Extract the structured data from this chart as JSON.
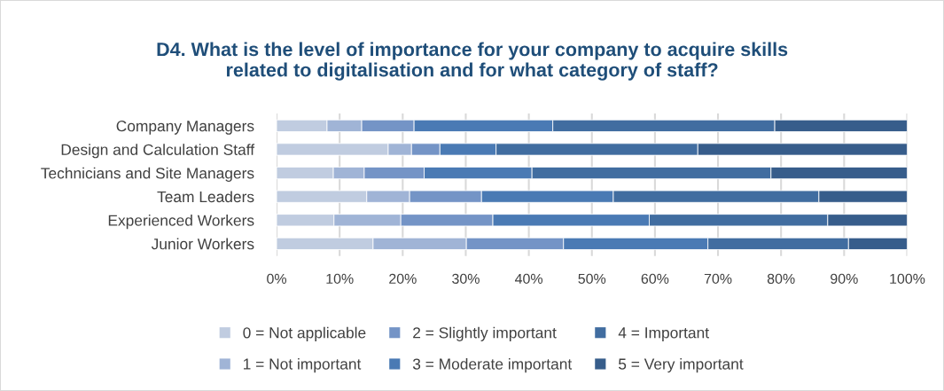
{
  "chart_data": {
    "type": "bar",
    "orientation": "horizontal",
    "stacked": true,
    "title": "D4. What is the level of importance for your company to acquire skills\nrelated to digitalisation and for what category of staff?",
    "categories": [
      "Company Managers",
      "Design and Calculation Staff",
      "Technicians and Site Managers",
      "Team Leaders",
      "Experienced Workers",
      "Junior Workers"
    ],
    "series": [
      {
        "name": "0 = Not applicable",
        "color": "#c0cce0",
        "values": [
          8,
          17.7,
          9,
          14.3,
          9.1,
          15.3
        ]
      },
      {
        "name": "1 = Not important",
        "color": "#a0b4d6",
        "values": [
          5.5,
          3.7,
          4.9,
          6.8,
          10.6,
          14.8
        ]
      },
      {
        "name": "2 = Slightly important",
        "color": "#7494c6",
        "values": [
          8.3,
          4.5,
          9.5,
          11.4,
          14.6,
          15.4
        ]
      },
      {
        "name": "3 = Moderate important",
        "color": "#4a7ab4",
        "values": [
          22,
          8.9,
          17.1,
          20.9,
          24.8,
          22.9
        ]
      },
      {
        "name": "4 = Important",
        "color": "#416da0",
        "values": [
          35.2,
          32,
          37.9,
          32.6,
          28.3,
          22.3
        ]
      },
      {
        "name": "5 = Very important",
        "color": "#375d8b",
        "values": [
          21,
          33.2,
          21.6,
          14,
          12.6,
          9.3
        ]
      }
    ],
    "xlim": [
      0,
      100
    ],
    "xticks": [
      {
        "value": 0,
        "label": "0%"
      },
      {
        "value": 10,
        "label": "10%"
      },
      {
        "value": 20,
        "label": "20%"
      },
      {
        "value": 30,
        "label": "30%"
      },
      {
        "value": 40,
        "label": "40%"
      },
      {
        "value": 50,
        "label": "50%"
      },
      {
        "value": 60,
        "label": "60%"
      },
      {
        "value": 70,
        "label": "70%"
      },
      {
        "value": 80,
        "label": "80%"
      },
      {
        "value": 90,
        "label": "90%"
      },
      {
        "value": 100,
        "label": "100%"
      }
    ],
    "grid": "x",
    "legend": "bottom"
  }
}
